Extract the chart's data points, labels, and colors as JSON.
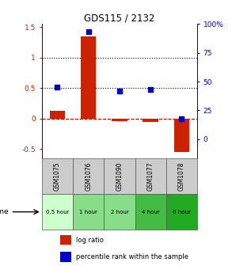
{
  "title": "GDS115 / 2132",
  "samples": [
    "GSM1075",
    "GSM1076",
    "GSM1090",
    "GSM1077",
    "GSM1078"
  ],
  "time_labels": [
    "0.5 hour",
    "1 hour",
    "2 hour",
    "4 hour",
    "6 hour"
  ],
  "time_colors": [
    "#ccffcc",
    "#88dd88",
    "#88dd88",
    "#44bb44",
    "#22aa22"
  ],
  "log_ratio": [
    0.12,
    1.35,
    -0.05,
    -0.06,
    -0.55
  ],
  "percentile": [
    45,
    93,
    42,
    43,
    18
  ],
  "bar_color": "#cc2200",
  "dot_color": "#0000cc",
  "ylim_left": [
    -0.65,
    1.55
  ],
  "ylim_right": [
    -16.25,
    38.75
  ],
  "yticks_left": [
    -0.5,
    0.0,
    0.5,
    1.0,
    1.5
  ],
  "ytick_labels_left": [
    "-0.5",
    "0",
    "0.5",
    "1",
    "1.5"
  ],
  "yticks_right": [
    0,
    25,
    50,
    75,
    100
  ],
  "ytick_labels_right": [
    "0",
    "25",
    "50",
    "75",
    "100%"
  ],
  "hlines": [
    0.0,
    0.5,
    1.0
  ],
  "hline_styles": [
    "dashed",
    "dotted",
    "dotted"
  ],
  "hline_colors": [
    "#cc0000",
    "#000000",
    "#000000"
  ],
  "bar_width": 0.5,
  "dot_size": 25,
  "legend_labels": [
    "log ratio",
    "percentile rank within the sample"
  ],
  "legend_colors": [
    "#cc2200",
    "#0000cc"
  ],
  "xlabel_time": "time",
  "sample_box_color": "#cccccc",
  "figsize": [
    2.93,
    3.36
  ],
  "dpi": 100
}
